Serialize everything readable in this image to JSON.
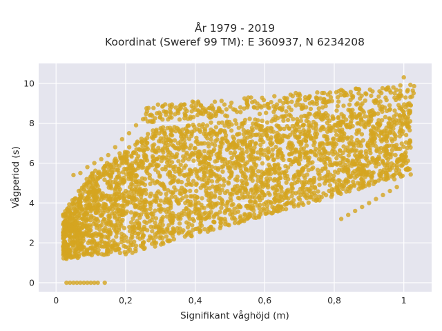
{
  "colors": {
    "plot_background": "#e5e5ee",
    "marker": "#d4a520",
    "grid": "#ffffff",
    "text": "#2a2a2a"
  },
  "chart_data": {
    "type": "scatter",
    "title": "År 1979 - 2019",
    "subtitle": "Koordinat (Sweref 99 TM): E 360937, N 6234208",
    "xlabel": "Signifikant våghöjd (m)",
    "ylabel": "Vågperiod (s)",
    "xlim": [
      -0.05,
      1.08
    ],
    "ylim": [
      -0.45,
      11.0
    ],
    "xticks": [
      0,
      0.2,
      0.4,
      0.6,
      0.8,
      1
    ],
    "xtick_labels": [
      "0",
      "0,2",
      "0,4",
      "0,6",
      "0,8",
      "1"
    ],
    "yticks": [
      0,
      2,
      4,
      6,
      8,
      10
    ],
    "ytick_labels": [
      "0",
      "2",
      "4",
      "6",
      "8",
      "10"
    ],
    "grid": true,
    "legend": "none",
    "series": [
      {
        "points_description_free": true,
        "x": [
          0.03,
          0.04,
          0.05,
          0.06,
          0.07,
          0.08,
          0.09,
          0.1,
          0.11,
          0.12,
          0.14,
          0.03,
          0.05,
          0.08,
          0.1,
          0.12,
          0.15,
          0.18,
          0.2,
          0.22,
          0.25,
          0.05,
          0.07,
          0.09,
          0.11,
          0.13,
          0.15,
          0.17,
          0.19,
          0.21,
          0.23,
          0.25,
          0.27,
          0.29,
          0.31,
          0.33,
          0.35,
          0.37,
          0.39,
          0.41,
          0.43,
          0.45,
          0.47,
          0.49,
          0.51,
          0.53,
          0.55,
          0.57,
          0.59,
          0.61,
          0.63,
          0.65,
          0.67,
          0.69,
          0.71,
          0.73,
          0.75,
          0.77,
          0.79,
          0.81,
          0.83,
          0.85,
          0.87,
          0.89,
          0.91,
          0.93,
          0.95,
          0.97,
          0.99,
          1.0,
          1.01,
          0.82,
          0.84,
          0.86,
          0.88,
          0.9,
          0.92,
          0.94,
          0.96,
          0.98,
          1.02
        ],
        "y": [
          0,
          0,
          0,
          0,
          0,
          0,
          0,
          0,
          0,
          0,
          0,
          1.2,
          1.3,
          1.4,
          1.45,
          1.5,
          1.6,
          1.7,
          1.8,
          1.9,
          2.0,
          5.4,
          5.5,
          5.8,
          6.0,
          6.2,
          6.4,
          6.8,
          7.2,
          7.5,
          7.9,
          8.2,
          8.4,
          8.5,
          8.6,
          8.5,
          8.6,
          8.5,
          8.6,
          8.6,
          8.6,
          8.7,
          8.7,
          8.7,
          8.7,
          8.8,
          8.8,
          8.8,
          8.8,
          8.8,
          8.7,
          8.7,
          8.8,
          8.9,
          8.9,
          9.0,
          9.1,
          9.2,
          9.3,
          9.3,
          9.4,
          9.4,
          9.5,
          9.5,
          9.6,
          9.6,
          9.7,
          9.8,
          9.9,
          10.3,
          9.6,
          3.2,
          3.4,
          3.6,
          3.8,
          4.0,
          4.2,
          4.4,
          4.6,
          4.8,
          8.9
        ]
      }
    ]
  }
}
